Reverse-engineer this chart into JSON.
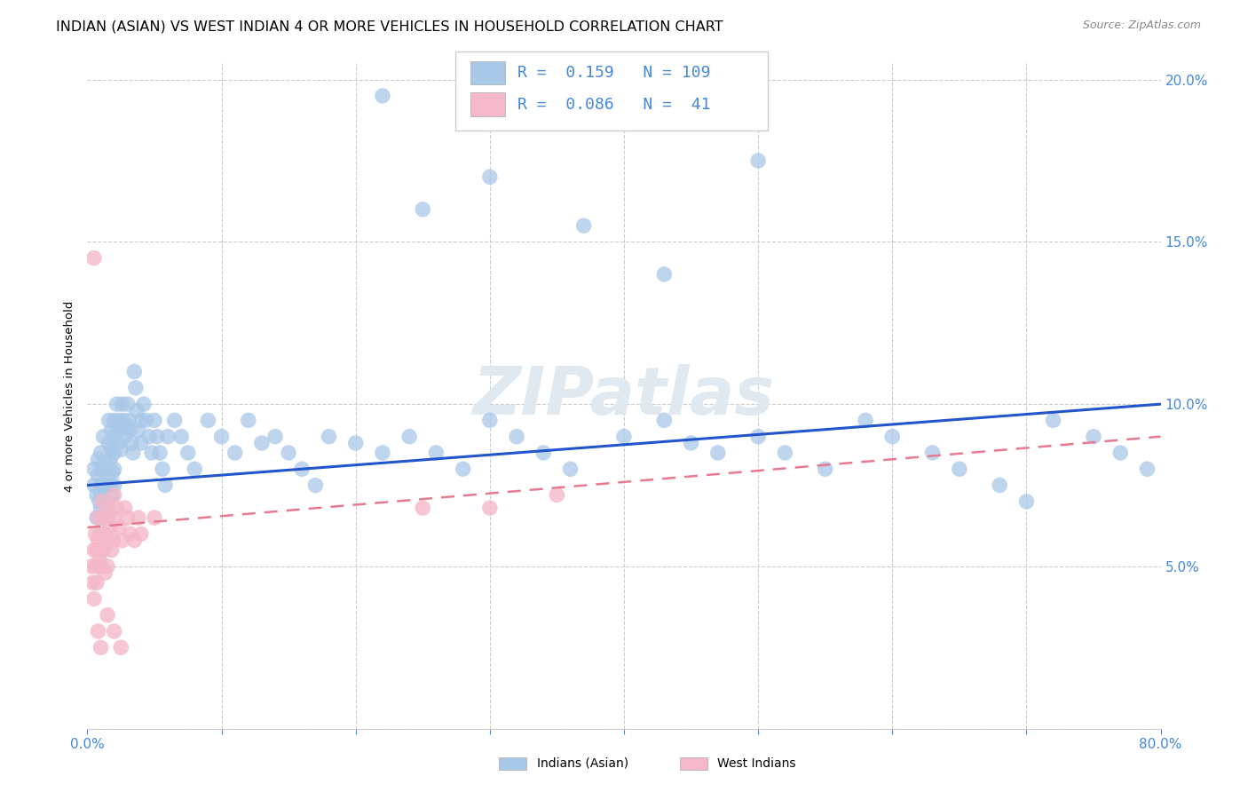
{
  "title": "INDIAN (ASIAN) VS WEST INDIAN 4 OR MORE VEHICLES IN HOUSEHOLD CORRELATION CHART",
  "source": "Source: ZipAtlas.com",
  "ylabel": "4 or more Vehicles in Household",
  "xlim": [
    0.0,
    0.8
  ],
  "ylim": [
    0.0,
    0.205
  ],
  "yticks": [
    0.05,
    0.1,
    0.15,
    0.2
  ],
  "ytick_labels": [
    "5.0%",
    "10.0%",
    "15.0%",
    "20.0%"
  ],
  "blue_color": "#a8c8e8",
  "pink_color": "#f4b8c8",
  "trend_blue": "#2255cc",
  "trend_pink": "#e87a90",
  "watermark": "ZIPatlas",
  "legend_R1": "0.159",
  "legend_N1": "109",
  "legend_R2": "0.086",
  "legend_N2": "41",
  "legend_label1": "Indians (Asian)",
  "legend_label2": "West Indians",
  "blue_trend_x0": 0.0,
  "blue_trend_y0": 0.075,
  "blue_trend_x1": 0.8,
  "blue_trend_y1": 0.1,
  "pink_trend_x0": 0.0,
  "pink_trend_y0": 0.062,
  "pink_trend_x1": 0.8,
  "pink_trend_y1": 0.09,
  "indian_x": [
    0.005,
    0.005,
    0.007,
    0.007,
    0.008,
    0.008,
    0.009,
    0.01,
    0.01,
    0.01,
    0.01,
    0.01,
    0.01,
    0.012,
    0.013,
    0.013,
    0.015,
    0.015,
    0.015,
    0.016,
    0.016,
    0.017,
    0.017,
    0.018,
    0.018,
    0.019,
    0.019,
    0.02,
    0.02,
    0.02,
    0.02,
    0.02,
    0.022,
    0.022,
    0.023,
    0.024,
    0.025,
    0.025,
    0.026,
    0.027,
    0.028,
    0.03,
    0.03,
    0.031,
    0.032,
    0.033,
    0.034,
    0.035,
    0.036,
    0.037,
    0.038,
    0.04,
    0.04,
    0.042,
    0.044,
    0.046,
    0.048,
    0.05,
    0.052,
    0.054,
    0.056,
    0.058,
    0.06,
    0.065,
    0.07,
    0.075,
    0.08,
    0.09,
    0.1,
    0.11,
    0.12,
    0.13,
    0.14,
    0.15,
    0.16,
    0.17,
    0.18,
    0.2,
    0.22,
    0.24,
    0.26,
    0.28,
    0.3,
    0.32,
    0.34,
    0.36,
    0.4,
    0.43,
    0.45,
    0.47,
    0.5,
    0.52,
    0.55,
    0.58,
    0.6,
    0.63,
    0.65,
    0.68,
    0.7,
    0.72,
    0.75,
    0.77,
    0.79,
    0.5,
    0.37,
    0.43,
    0.22,
    0.3,
    0.25
  ],
  "indian_y": [
    0.075,
    0.08,
    0.072,
    0.065,
    0.078,
    0.083,
    0.07,
    0.075,
    0.072,
    0.068,
    0.065,
    0.08,
    0.085,
    0.09,
    0.075,
    0.082,
    0.078,
    0.07,
    0.065,
    0.095,
    0.088,
    0.083,
    0.075,
    0.092,
    0.086,
    0.079,
    0.072,
    0.095,
    0.09,
    0.085,
    0.08,
    0.075,
    0.1,
    0.093,
    0.088,
    0.095,
    0.092,
    0.086,
    0.1,
    0.095,
    0.09,
    0.1,
    0.093,
    0.095,
    0.092,
    0.088,
    0.085,
    0.11,
    0.105,
    0.098,
    0.092,
    0.095,
    0.088,
    0.1,
    0.095,
    0.09,
    0.085,
    0.095,
    0.09,
    0.085,
    0.08,
    0.075,
    0.09,
    0.095,
    0.09,
    0.085,
    0.08,
    0.095,
    0.09,
    0.085,
    0.095,
    0.088,
    0.09,
    0.085,
    0.08,
    0.075,
    0.09,
    0.088,
    0.085,
    0.09,
    0.085,
    0.08,
    0.095,
    0.09,
    0.085,
    0.08,
    0.09,
    0.095,
    0.088,
    0.085,
    0.09,
    0.085,
    0.08,
    0.095,
    0.09,
    0.085,
    0.08,
    0.075,
    0.07,
    0.095,
    0.09,
    0.085,
    0.08,
    0.175,
    0.155,
    0.14,
    0.195,
    0.17,
    0.16
  ],
  "westindian_x": [
    0.003,
    0.004,
    0.005,
    0.005,
    0.006,
    0.006,
    0.007,
    0.007,
    0.008,
    0.008,
    0.009,
    0.01,
    0.01,
    0.01,
    0.011,
    0.012,
    0.012,
    0.013,
    0.013,
    0.014,
    0.015,
    0.015,
    0.016,
    0.017,
    0.018,
    0.019,
    0.02,
    0.02,
    0.022,
    0.024,
    0.026,
    0.028,
    0.03,
    0.032,
    0.035,
    0.038,
    0.04,
    0.05,
    0.25,
    0.3,
    0.35
  ],
  "westindian_y": [
    0.05,
    0.045,
    0.055,
    0.04,
    0.06,
    0.05,
    0.055,
    0.045,
    0.065,
    0.058,
    0.052,
    0.06,
    0.055,
    0.05,
    0.07,
    0.065,
    0.055,
    0.06,
    0.048,
    0.065,
    0.058,
    0.05,
    0.068,
    0.062,
    0.055,
    0.058,
    0.072,
    0.065,
    0.068,
    0.062,
    0.058,
    0.068,
    0.065,
    0.06,
    0.058,
    0.065,
    0.06,
    0.065,
    0.068,
    0.068,
    0.072
  ],
  "title_fontsize": 11.5,
  "tick_color": "#4488dd",
  "background_color": "#ffffff",
  "grid_color": "#cccccc",
  "westindian_outlier_x": [
    0.005,
    0.008,
    0.01,
    0.015,
    0.02,
    0.025
  ],
  "westindian_outlier_y": [
    0.145,
    0.03,
    0.025,
    0.035,
    0.03,
    0.025
  ]
}
